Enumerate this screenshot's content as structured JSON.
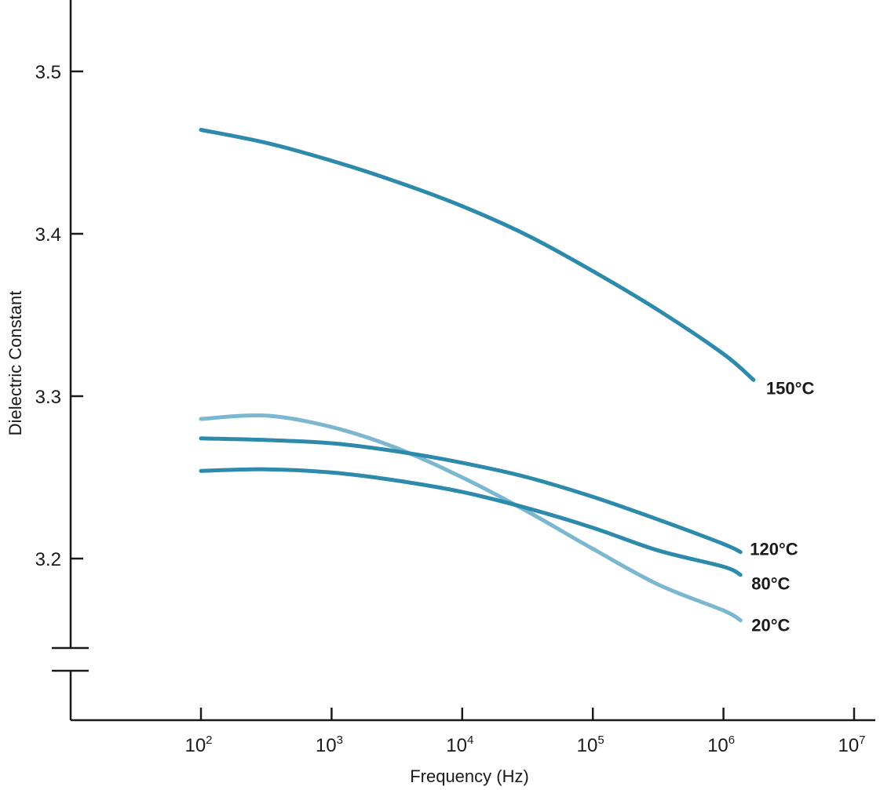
{
  "chart_data": {
    "type": "line",
    "xlabel": "Frequency (Hz)",
    "ylabel": "Dielectric Constant",
    "xscale": "log",
    "x_tick_values": [
      100,
      1000,
      10000,
      100000,
      1000000,
      10000000
    ],
    "x_tick_base": [
      "10",
      "10",
      "10",
      "10",
      "10",
      "10"
    ],
    "x_tick_exp": [
      "2",
      "3",
      "4",
      "5",
      "6",
      "7"
    ],
    "y_tick_values": [
      3.2,
      3.3,
      3.4,
      3.5
    ],
    "y_tick_labels": [
      "3.2",
      "3.3",
      "3.4",
      "3.5"
    ],
    "ylim": [
      3.15,
      3.55
    ],
    "y_axis_break": true,
    "grid": false,
    "legend": "inline labels at line ends",
    "series": [
      {
        "name": "150°C",
        "color": "#2e8aac",
        "x": [
          100,
          316,
          1000,
          3162,
          10000,
          31623,
          100000,
          316228,
          1000000,
          1700000
        ],
        "y": [
          3.464,
          3.456,
          3.445,
          3.432,
          3.417,
          3.399,
          3.377,
          3.353,
          3.326,
          3.31
        ]
      },
      {
        "name": "120°C",
        "color": "#2e8aac",
        "x": [
          100,
          316,
          1000,
          3162,
          10000,
          31623,
          100000,
          316228,
          1000000,
          1350000
        ],
        "y": [
          3.274,
          3.273,
          3.271,
          3.266,
          3.259,
          3.25,
          3.238,
          3.224,
          3.209,
          3.204
        ]
      },
      {
        "name": "80°C",
        "color": "#2e8aac",
        "x": [
          100,
          316,
          1000,
          3162,
          10000,
          31623,
          100000,
          316228,
          1000000,
          1350000
        ],
        "y": [
          3.254,
          3.255,
          3.253,
          3.248,
          3.241,
          3.231,
          3.219,
          3.205,
          3.195,
          3.19
        ]
      },
      {
        "name": "20°C",
        "color": "#7bb8cf",
        "x": [
          100,
          316,
          1000,
          3162,
          10000,
          31623,
          100000,
          316228,
          1000000,
          1350000
        ],
        "y": [
          3.286,
          3.288,
          3.281,
          3.268,
          3.25,
          3.229,
          3.206,
          3.184,
          3.168,
          3.162
        ]
      }
    ]
  }
}
